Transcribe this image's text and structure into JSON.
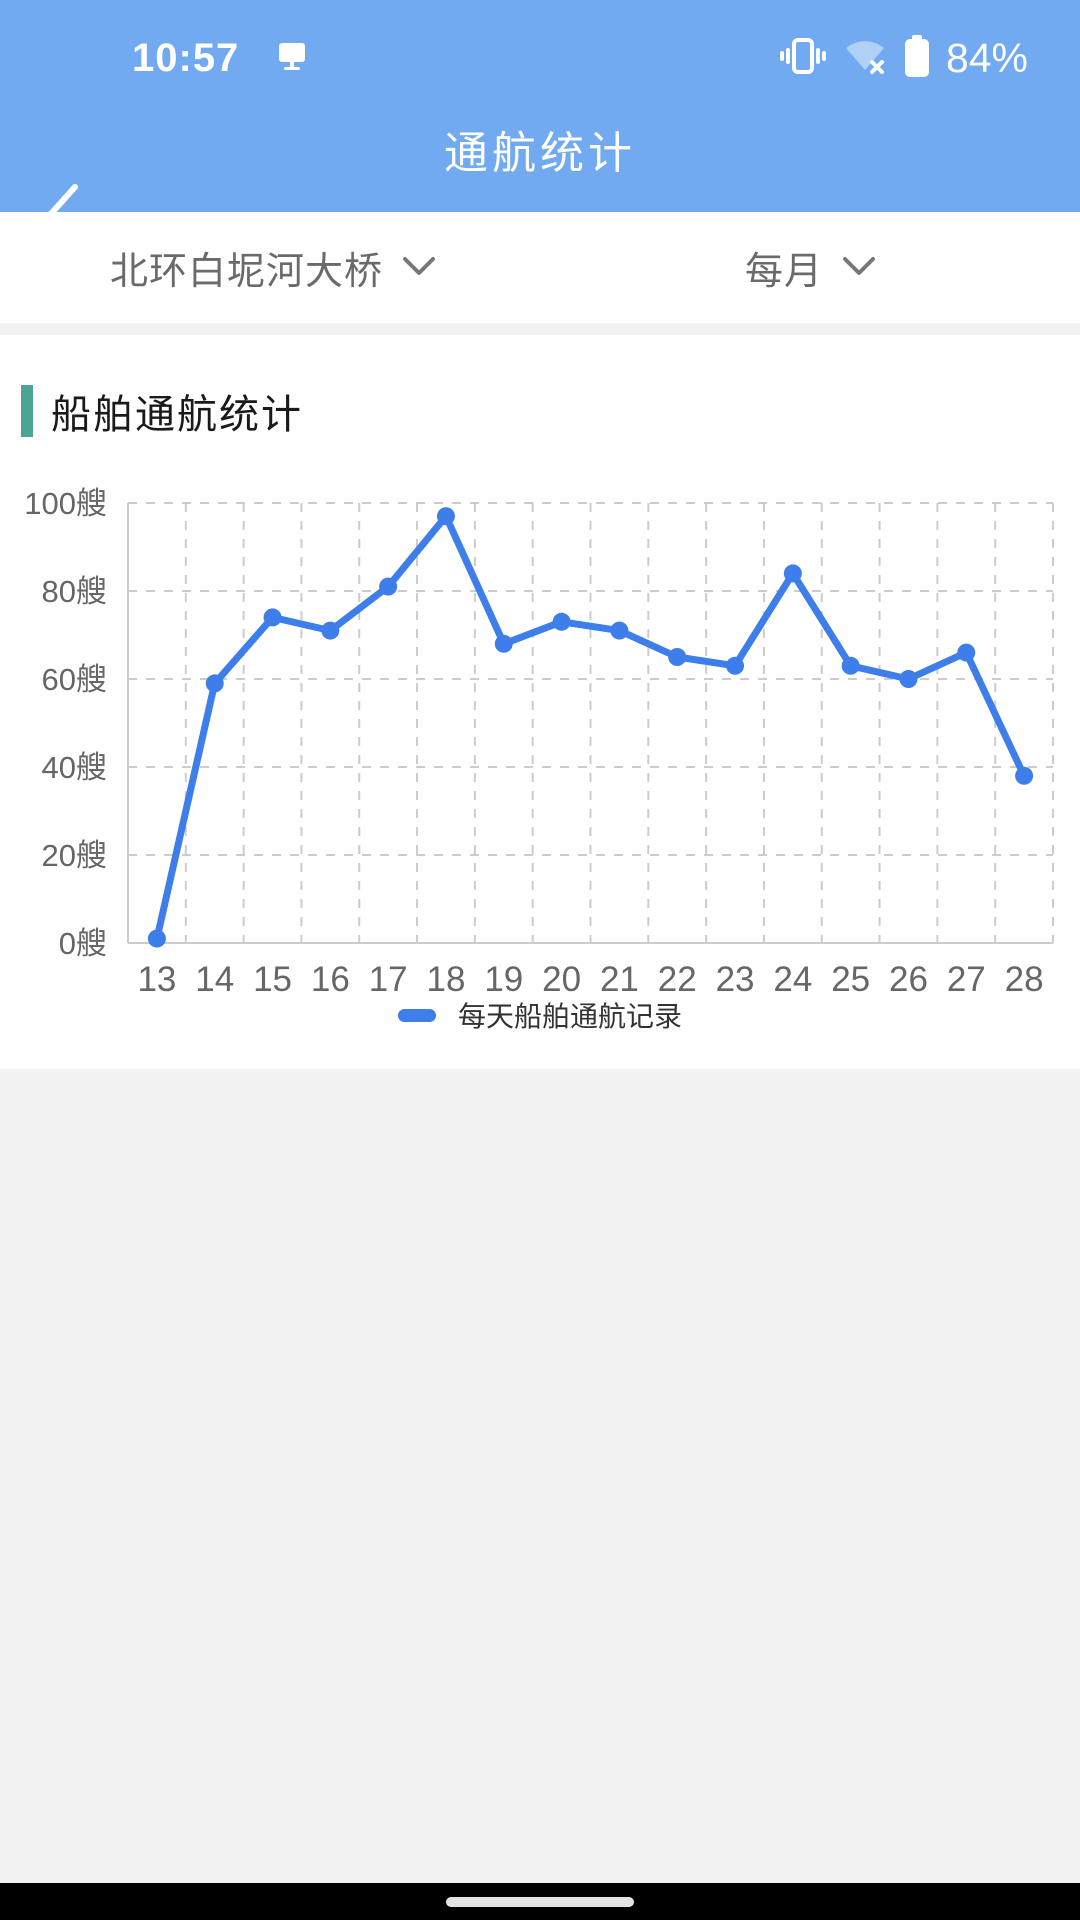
{
  "status_bar": {
    "time": "10:57",
    "battery_percent": "84%",
    "icons": [
      "screen-cast",
      "vibrate",
      "wifi-off",
      "battery-full"
    ]
  },
  "header": {
    "title": "通航统计",
    "back_icon": "chevron-left"
  },
  "filters": {
    "bridge": {
      "value": "北环白坭河大桥",
      "icon": "chevron-down"
    },
    "period": {
      "value": "每月",
      "icon": "chevron-down"
    }
  },
  "section": {
    "title": "船舶通航统计"
  },
  "chart_data": {
    "type": "line",
    "title": "船舶通航统计",
    "x": [
      13,
      14,
      15,
      16,
      17,
      18,
      19,
      20,
      21,
      22,
      23,
      24,
      25,
      26,
      27,
      28
    ],
    "series": [
      {
        "name": "每天船舶通航记录",
        "values": [
          1,
          59,
          74,
          71,
          81,
          97,
          68,
          73,
          71,
          65,
          63,
          84,
          63,
          60,
          66,
          38
        ]
      }
    ],
    "xlabel": "",
    "ylabel": "",
    "y_unit": "艘",
    "ylim": [
      0,
      100
    ],
    "ytick_interval": 20,
    "grid": "dashed",
    "legend_position": "bottom",
    "line_color": "#3D7EEA"
  },
  "colors": {
    "header_blue": "#71AAF0",
    "accent_teal": "#4BA496",
    "line_blue": "#3D7EEA",
    "grid_gray": "#cccccc",
    "tick_text": "#666666",
    "card_bg": "#ffffff",
    "page_gray": "#f2f2f2"
  }
}
